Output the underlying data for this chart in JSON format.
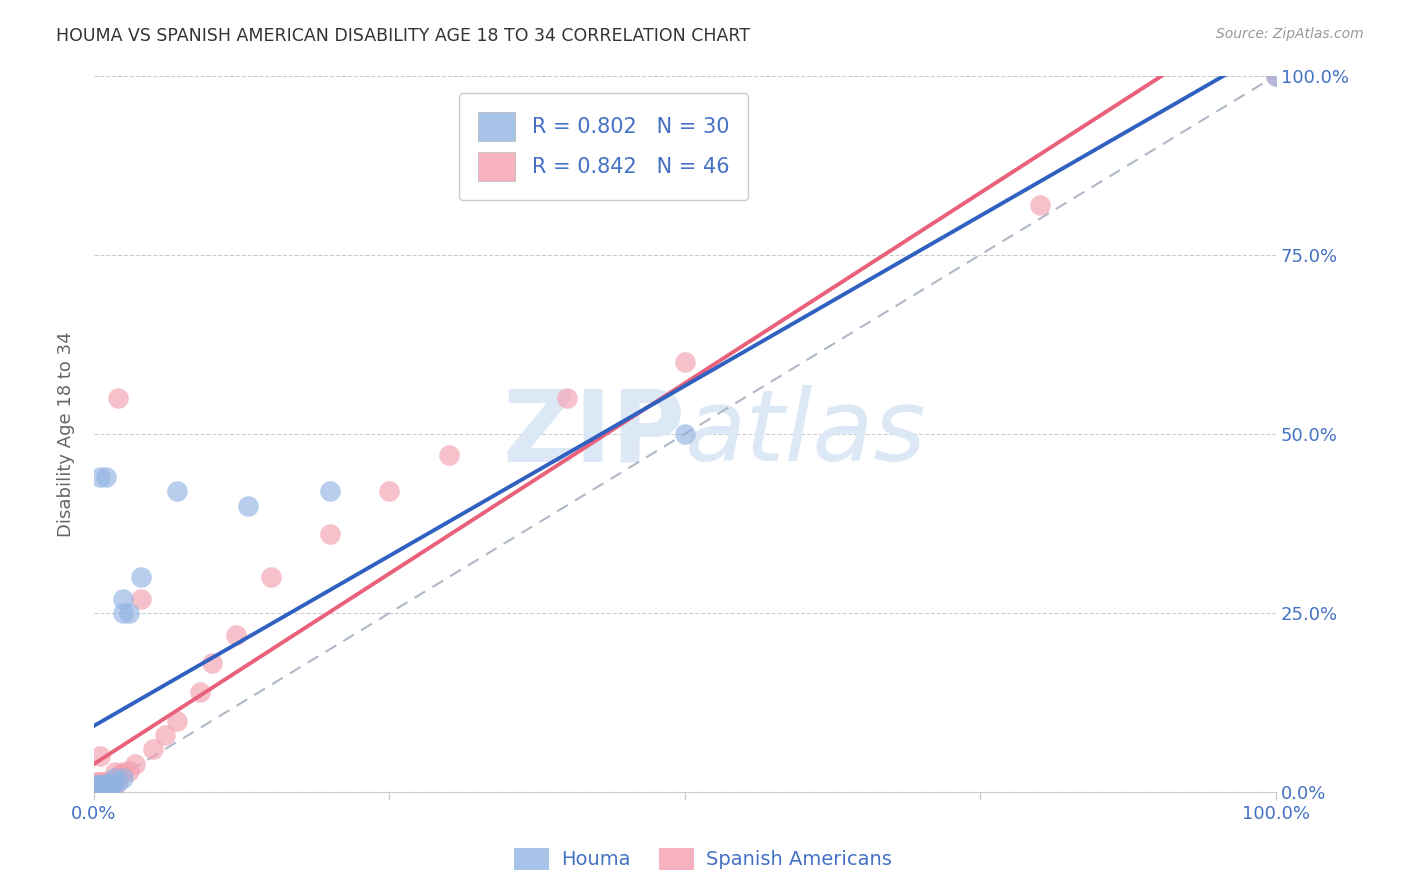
{
  "title": "HOUMA VS SPANISH AMERICAN DISABILITY AGE 18 TO 34 CORRELATION CHART",
  "source": "Source: ZipAtlas.com",
  "ylabel": "Disability Age 18 to 34",
  "houma_R": 0.802,
  "houma_N": 30,
  "spanish_R": 0.842,
  "spanish_N": 46,
  "houma_color": "#92b4e3",
  "spanish_color": "#f4a0b0",
  "houma_line_color": "#3060c0",
  "spanish_line_color": "#e8607a",
  "title_color": "#333333",
  "axis_label_color": "#666666",
  "tick_color": "#4472c4",
  "source_color": "#999999",
  "legend_text_color": "#4472c4",
  "background_color": "#ffffff",
  "grid_color": "#cccccc",
  "watermark_color": "#dce8f5",
  "houma_x": [
    0.0,
    0.002,
    0.003,
    0.004,
    0.005,
    0.006,
    0.007,
    0.008,
    0.009,
    0.01,
    0.011,
    0.012,
    0.013,
    0.014,
    0.015,
    0.016,
    0.018,
    0.02,
    0.022,
    0.025,
    0.028,
    0.03,
    0.035,
    0.04,
    0.055,
    0.07,
    0.1,
    0.2,
    0.5,
    1.0
  ],
  "houma_y": [
    0.005,
    0.01,
    0.015,
    0.005,
    0.02,
    0.01,
    0.015,
    0.005,
    0.012,
    0.008,
    0.01,
    0.008,
    0.015,
    0.01,
    0.012,
    0.015,
    0.025,
    0.02,
    0.03,
    0.025,
    0.03,
    0.27,
    0.05,
    0.3,
    0.06,
    0.4,
    0.25,
    0.42,
    0.5,
    1.0
  ],
  "spanish_x": [
    0.0,
    0.001,
    0.002,
    0.003,
    0.004,
    0.005,
    0.006,
    0.007,
    0.008,
    0.009,
    0.01,
    0.011,
    0.012,
    0.013,
    0.014,
    0.015,
    0.016,
    0.017,
    0.018,
    0.02,
    0.022,
    0.024,
    0.025,
    0.028,
    0.03,
    0.032,
    0.035,
    0.04,
    0.045,
    0.05,
    0.055,
    0.06,
    0.065,
    0.07,
    0.08,
    0.09,
    0.1,
    0.12,
    0.15,
    0.18,
    0.2,
    0.25,
    0.3,
    0.4,
    0.5,
    1.0
  ],
  "spanish_y": [
    0.01,
    0.015,
    0.01,
    0.005,
    0.015,
    0.02,
    0.008,
    0.015,
    0.01,
    0.008,
    0.015,
    0.01,
    0.008,
    0.015,
    0.012,
    0.01,
    0.015,
    0.008,
    0.02,
    0.025,
    0.028,
    0.02,
    0.025,
    0.55,
    0.03,
    0.035,
    0.04,
    0.2,
    0.05,
    0.06,
    0.07,
    0.08,
    0.09,
    0.1,
    0.12,
    0.14,
    0.18,
    0.22,
    0.28,
    0.33,
    0.37,
    0.42,
    0.47,
    0.55,
    0.6,
    1.0
  ],
  "xlim": [
    0.0,
    1.0
  ],
  "ylim": [
    0.0,
    1.0
  ],
  "xticks": [
    0.0,
    0.25,
    0.5,
    0.75,
    1.0
  ],
  "yticks": [
    0.0,
    0.25,
    0.5,
    0.75,
    1.0
  ],
  "xtick_labels_show": [
    "0.0%",
    "",
    "",
    "",
    "100.0%"
  ],
  "ytick_labels_right": [
    "0.0%",
    "25.0%",
    "50.0%",
    "75.0%",
    "100.0%"
  ]
}
